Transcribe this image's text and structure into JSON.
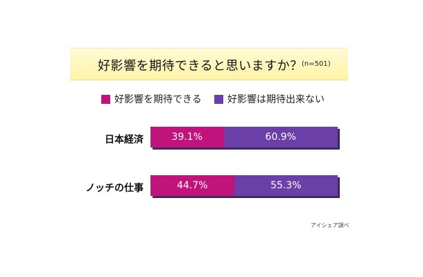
{
  "title": "好影響を期待できると思いますか？",
  "subtitle": "(n=501)",
  "legend": [
    {
      "label": "好影響を期待できる",
      "color": "#c0147c"
    },
    {
      "label": "好影響は期待出来ない",
      "color": "#6a3fa8"
    }
  ],
  "chart_data": {
    "type": "bar",
    "orientation": "horizontal",
    "stacked": true,
    "unit": "%",
    "categories": [
      "日本経済",
      "ノッチの仕事"
    ],
    "series": [
      {
        "name": "好影響を期待できる",
        "values": [
          39.1,
          44.7
        ],
        "labels": [
          "39.1%",
          "44.7%"
        ],
        "color": "#c0147c"
      },
      {
        "name": "好影響は期待出来ない",
        "values": [
          60.9,
          55.3
        ],
        "labels": [
          "60.9%",
          "55.3%"
        ],
        "color": "#6a3fa8"
      }
    ],
    "xlim": [
      0,
      100
    ],
    "grid": false,
    "legend_position": "top"
  },
  "footnote": "アイシェア調べ"
}
